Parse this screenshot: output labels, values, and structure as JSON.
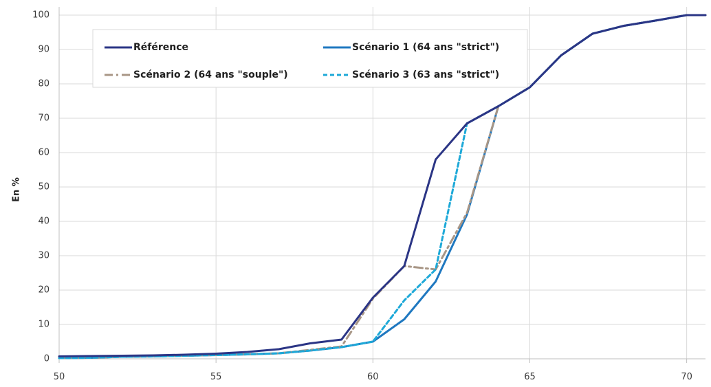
{
  "chart_data": {
    "type": "line",
    "title": "",
    "xlabel": "",
    "ylabel": "En %",
    "xlim": [
      50,
      70.6
    ],
    "ylim": [
      0,
      100
    ],
    "x_ticks": [
      "50",
      "55",
      "60",
      "65",
      "70"
    ],
    "y_ticks": [
      "0",
      "10",
      "20",
      "30",
      "40",
      "50",
      "60",
      "70",
      "80",
      "90",
      "100"
    ],
    "grid": "vertical and horizontal",
    "legend_position": "top-left",
    "x": [
      50,
      51,
      52,
      53,
      54,
      55,
      56,
      57,
      58,
      59,
      60,
      61,
      62,
      63,
      64,
      65,
      66,
      67,
      68,
      69,
      70,
      70.6
    ],
    "series": [
      {
        "name": "Référence",
        "color": "#2b3585",
        "dash": "solid",
        "values": [
          0.7,
          0.8,
          0.9,
          1.0,
          1.2,
          1.5,
          2.0,
          2.8,
          4.5,
          5.6,
          17.8,
          27.0,
          58.0,
          68.5,
          73.5,
          79.0,
          88.3,
          94.6,
          96.9,
          98.4,
          100.0,
          100.0
        ]
      },
      {
        "name": "Scénario 1 (64 ans \"strict\")",
        "color": "#1f78c0",
        "dash": "solid",
        "values": [
          0.2,
          0.3,
          0.6,
          0.7,
          0.9,
          1.1,
          1.3,
          1.6,
          2.4,
          3.4,
          5.0,
          11.5,
          22.5,
          42.0,
          73.5,
          79.0,
          88.3,
          94.6,
          96.9,
          98.4,
          100.0,
          100.0
        ]
      },
      {
        "name": "Scénario 2 (64 ans \"souple\")",
        "color": "#a89686",
        "dash": "dashdot",
        "values": [
          0.2,
          0.3,
          0.6,
          0.7,
          0.9,
          1.1,
          1.3,
          1.6,
          2.6,
          3.6,
          17.5,
          27.0,
          26.0,
          42.5,
          73.5,
          79.0,
          88.3,
          94.6,
          96.9,
          98.4,
          100.0,
          100.0
        ]
      },
      {
        "name": "Scénario 3 (63 ans  \"strict\")",
        "color": "#1ea9d8",
        "dash": "dashed",
        "values": [
          0.2,
          0.3,
          0.6,
          0.7,
          0.9,
          1.1,
          1.3,
          1.6,
          2.4,
          3.4,
          5.0,
          17.0,
          26.0,
          68.5,
          73.5,
          79.0,
          88.3,
          94.6,
          96.9,
          98.4,
          100.0,
          100.0
        ]
      }
    ]
  }
}
